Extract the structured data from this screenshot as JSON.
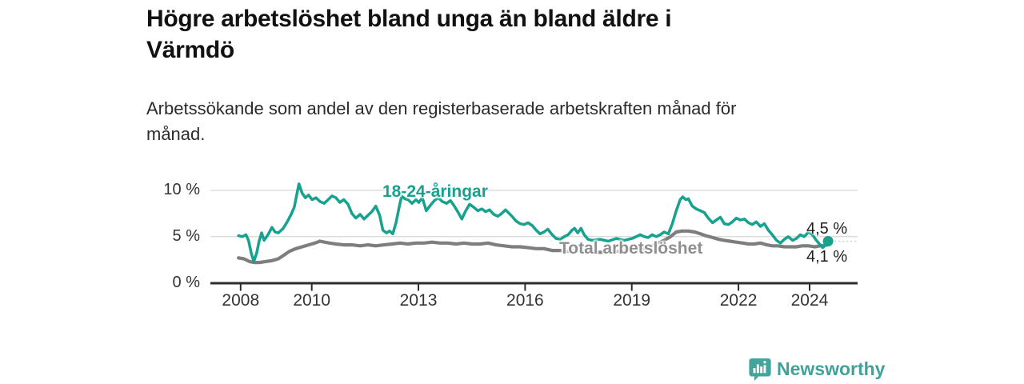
{
  "header": {
    "title_lines": [
      "Högre arbetslöshet bland unga än bland äldre i",
      "Värmdö"
    ],
    "subtitle_lines": [
      "Arbetssökande som andel av den registerbaserade arbetskraften månad för",
      "månad."
    ]
  },
  "footer": {
    "brand": "Newsworthy",
    "brand_icon": "bar-chart-speech-bubble",
    "brand_color": "#3FA29A"
  },
  "chart_data": {
    "type": "line",
    "title": "Högre arbetslöshet bland unga än bland äldre i Värmdö",
    "subtitle": "Arbetssökande som andel av den registerbaserade arbetskraften månad för månad.",
    "unit": "%",
    "grid": true,
    "legend_position": "inline-labels",
    "xlim": [
      2007.15,
      2025.35
    ],
    "ylim": [
      0,
      10
    ],
    "x_tick_years": [
      2008,
      2010,
      2013,
      2016,
      2019,
      2022,
      2024
    ],
    "x_tick_labels": [
      "2008",
      "2010",
      "2013",
      "2016",
      "2019",
      "2022",
      "2024"
    ],
    "y_tick_values": [
      0,
      5,
      10
    ],
    "y_tick_labels": [
      "0 %",
      "5 %",
      "10 %"
    ],
    "axis_color": "#2d2d2d",
    "grid_color": "#d7d7d7",
    "series": [
      {
        "name": "18-24-åringar",
        "color": "#17A28F",
        "end_label": "4,5 %",
        "end_value": 4.5,
        "end_dot": true,
        "points": [
          [
            2007.94,
            5.1
          ],
          [
            2008.05,
            5.0
          ],
          [
            2008.15,
            5.2
          ],
          [
            2008.22,
            4.6
          ],
          [
            2008.3,
            3.2
          ],
          [
            2008.37,
            2.3
          ],
          [
            2008.45,
            3.2
          ],
          [
            2008.52,
            4.5
          ],
          [
            2008.59,
            5.4
          ],
          [
            2008.66,
            4.6
          ],
          [
            2008.77,
            5.2
          ],
          [
            2008.88,
            6.0
          ],
          [
            2008.97,
            5.5
          ],
          [
            2009.06,
            5.4
          ],
          [
            2009.2,
            5.9
          ],
          [
            2009.31,
            6.6
          ],
          [
            2009.42,
            7.4
          ],
          [
            2009.51,
            8.2
          ],
          [
            2009.57,
            9.4
          ],
          [
            2009.64,
            10.7
          ],
          [
            2009.73,
            9.7
          ],
          [
            2009.82,
            9.2
          ],
          [
            2009.91,
            9.5
          ],
          [
            2010.01,
            9.0
          ],
          [
            2010.12,
            9.2
          ],
          [
            2010.23,
            8.8
          ],
          [
            2010.35,
            8.6
          ],
          [
            2010.46,
            9.0
          ],
          [
            2010.57,
            9.4
          ],
          [
            2010.68,
            9.2
          ],
          [
            2010.79,
            8.7
          ],
          [
            2010.9,
            9.0
          ],
          [
            2011.02,
            8.5
          ],
          [
            2011.13,
            7.5
          ],
          [
            2011.24,
            7.0
          ],
          [
            2011.36,
            7.4
          ],
          [
            2011.47,
            6.9
          ],
          [
            2011.58,
            7.3
          ],
          [
            2011.69,
            7.7
          ],
          [
            2011.8,
            8.3
          ],
          [
            2011.91,
            7.3
          ],
          [
            2012.0,
            5.7
          ],
          [
            2012.1,
            5.4
          ],
          [
            2012.19,
            5.6
          ],
          [
            2012.28,
            5.3
          ],
          [
            2012.37,
            6.5
          ],
          [
            2012.46,
            8.2
          ],
          [
            2012.53,
            9.4
          ],
          [
            2012.62,
            9.1
          ],
          [
            2012.71,
            9.0
          ],
          [
            2012.82,
            8.6
          ],
          [
            2012.93,
            9.0
          ],
          [
            2013.01,
            8.7
          ],
          [
            2013.11,
            9.2
          ],
          [
            2013.22,
            7.8
          ],
          [
            2013.34,
            8.4
          ],
          [
            2013.45,
            8.9
          ],
          [
            2013.56,
            9.2
          ],
          [
            2013.67,
            8.8
          ],
          [
            2013.79,
            8.6
          ],
          [
            2013.9,
            8.9
          ],
          [
            2014.01,
            8.3
          ],
          [
            2014.12,
            7.6
          ],
          [
            2014.22,
            6.9
          ],
          [
            2014.33,
            7.8
          ],
          [
            2014.44,
            8.5
          ],
          [
            2014.55,
            8.2
          ],
          [
            2014.67,
            7.8
          ],
          [
            2014.78,
            8.0
          ],
          [
            2014.89,
            7.7
          ],
          [
            2015.0,
            7.9
          ],
          [
            2015.12,
            7.4
          ],
          [
            2015.23,
            7.2
          ],
          [
            2015.34,
            7.5
          ],
          [
            2015.45,
            7.9
          ],
          [
            2015.63,
            7.2
          ],
          [
            2015.74,
            6.7
          ],
          [
            2015.86,
            6.4
          ],
          [
            2015.97,
            6.3
          ],
          [
            2016.08,
            6.5
          ],
          [
            2016.2,
            6.2
          ],
          [
            2016.31,
            5.7
          ],
          [
            2016.42,
            5.3
          ],
          [
            2016.53,
            5.5
          ],
          [
            2016.64,
            5.8
          ],
          [
            2016.76,
            5.2
          ],
          [
            2016.87,
            4.8
          ],
          [
            2016.99,
            4.7
          ],
          [
            2017.1,
            5.0
          ],
          [
            2017.21,
            5.2
          ],
          [
            2017.32,
            5.7
          ],
          [
            2017.39,
            5.9
          ],
          [
            2017.48,
            5.4
          ],
          [
            2017.57,
            5.9
          ],
          [
            2017.66,
            5.2
          ],
          [
            2017.77,
            4.7
          ],
          [
            2017.89,
            4.6
          ],
          [
            2018.11,
            4.7
          ],
          [
            2018.34,
            4.5
          ],
          [
            2018.56,
            4.8
          ],
          [
            2018.79,
            4.6
          ],
          [
            2019.01,
            4.8
          ],
          [
            2019.24,
            5.2
          ],
          [
            2019.35,
            5.0
          ],
          [
            2019.46,
            4.9
          ],
          [
            2019.57,
            5.2
          ],
          [
            2019.69,
            5.0
          ],
          [
            2019.8,
            5.2
          ],
          [
            2019.91,
            5.5
          ],
          [
            2020.03,
            5.3
          ],
          [
            2020.14,
            6.4
          ],
          [
            2020.25,
            7.8
          ],
          [
            2020.36,
            9.0
          ],
          [
            2020.43,
            9.3
          ],
          [
            2020.52,
            9.0
          ],
          [
            2020.59,
            9.1
          ],
          [
            2020.7,
            8.3
          ],
          [
            2020.81,
            8.0
          ],
          [
            2020.93,
            7.8
          ],
          [
            2021.04,
            7.6
          ],
          [
            2021.15,
            7.0
          ],
          [
            2021.27,
            6.5
          ],
          [
            2021.38,
            6.8
          ],
          [
            2021.49,
            7.1
          ],
          [
            2021.6,
            6.4
          ],
          [
            2021.72,
            6.3
          ],
          [
            2021.83,
            6.6
          ],
          [
            2021.94,
            7.0
          ],
          [
            2022.05,
            6.8
          ],
          [
            2022.17,
            6.9
          ],
          [
            2022.28,
            6.5
          ],
          [
            2022.39,
            6.3
          ],
          [
            2022.5,
            6.6
          ],
          [
            2022.62,
            6.1
          ],
          [
            2022.73,
            6.4
          ],
          [
            2022.84,
            5.7
          ],
          [
            2022.95,
            5.2
          ],
          [
            2023.07,
            4.6
          ],
          [
            2023.18,
            4.3
          ],
          [
            2023.29,
            4.7
          ],
          [
            2023.4,
            5.0
          ],
          [
            2023.52,
            4.6
          ],
          [
            2023.63,
            4.8
          ],
          [
            2023.74,
            5.2
          ],
          [
            2023.85,
            5.0
          ],
          [
            2023.97,
            5.5
          ],
          [
            2024.08,
            5.2
          ],
          [
            2024.19,
            4.6
          ],
          [
            2024.3,
            4.1
          ],
          [
            2024.37,
            3.8
          ],
          [
            2024.45,
            4.1
          ],
          [
            2024.52,
            4.5
          ]
        ]
      },
      {
        "name": "Total arbetslöshet",
        "color": "#7E7E7E",
        "end_label": "4,1 %",
        "end_value": 4.1,
        "end_dot": false,
        "points": [
          [
            2007.94,
            2.7
          ],
          [
            2008.09,
            2.6
          ],
          [
            2008.25,
            2.3
          ],
          [
            2008.38,
            2.2
          ],
          [
            2008.54,
            2.2
          ],
          [
            2008.7,
            2.3
          ],
          [
            2008.88,
            2.4
          ],
          [
            2009.06,
            2.6
          ],
          [
            2009.22,
            3.0
          ],
          [
            2009.37,
            3.4
          ],
          [
            2009.55,
            3.7
          ],
          [
            2009.73,
            3.9
          ],
          [
            2009.91,
            4.1
          ],
          [
            2010.09,
            4.3
          ],
          [
            2010.23,
            4.5
          ],
          [
            2010.36,
            4.4
          ],
          [
            2010.5,
            4.3
          ],
          [
            2010.68,
            4.2
          ],
          [
            2010.9,
            4.1
          ],
          [
            2011.13,
            4.1
          ],
          [
            2011.36,
            4.0
          ],
          [
            2011.58,
            4.1
          ],
          [
            2011.8,
            4.0
          ],
          [
            2012.03,
            4.1
          ],
          [
            2012.26,
            4.2
          ],
          [
            2012.48,
            4.3
          ],
          [
            2012.7,
            4.2
          ],
          [
            2012.93,
            4.3
          ],
          [
            2013.16,
            4.3
          ],
          [
            2013.38,
            4.4
          ],
          [
            2013.61,
            4.3
          ],
          [
            2013.83,
            4.3
          ],
          [
            2014.06,
            4.2
          ],
          [
            2014.28,
            4.3
          ],
          [
            2014.51,
            4.2
          ],
          [
            2014.73,
            4.2
          ],
          [
            2014.96,
            4.3
          ],
          [
            2015.18,
            4.1
          ],
          [
            2015.41,
            4.0
          ],
          [
            2015.63,
            3.9
          ],
          [
            2015.86,
            3.9
          ],
          [
            2016.08,
            3.8
          ],
          [
            2016.31,
            3.7
          ],
          [
            2016.53,
            3.7
          ],
          [
            2016.76,
            3.5
          ],
          [
            2016.99,
            3.5
          ],
          [
            2017.21,
            3.4
          ],
          [
            2017.43,
            3.5
          ],
          [
            2017.66,
            3.4
          ],
          [
            2017.89,
            3.4
          ],
          [
            2018.11,
            3.3
          ],
          [
            2018.34,
            3.4
          ],
          [
            2018.56,
            3.4
          ],
          [
            2018.79,
            3.5
          ],
          [
            2019.01,
            3.5
          ],
          [
            2019.24,
            3.6
          ],
          [
            2019.46,
            3.8
          ],
          [
            2019.69,
            4.2
          ],
          [
            2019.91,
            4.6
          ],
          [
            2020.09,
            5.0
          ],
          [
            2020.25,
            5.5
          ],
          [
            2020.41,
            5.6
          ],
          [
            2020.59,
            5.6
          ],
          [
            2020.77,
            5.5
          ],
          [
            2020.93,
            5.3
          ],
          [
            2021.08,
            5.1
          ],
          [
            2021.27,
            4.9
          ],
          [
            2021.45,
            4.7
          ],
          [
            2021.6,
            4.6
          ],
          [
            2021.76,
            4.5
          ],
          [
            2021.94,
            4.4
          ],
          [
            2022.12,
            4.3
          ],
          [
            2022.28,
            4.2
          ],
          [
            2022.44,
            4.2
          ],
          [
            2022.62,
            4.3
          ],
          [
            2022.8,
            4.1
          ],
          [
            2022.95,
            4.0
          ],
          [
            2023.11,
            4.0
          ],
          [
            2023.29,
            3.9
          ],
          [
            2023.47,
            3.9
          ],
          [
            2023.63,
            3.9
          ],
          [
            2023.79,
            4.0
          ],
          [
            2023.97,
            4.0
          ],
          [
            2024.15,
            3.9
          ],
          [
            2024.3,
            4.0
          ],
          [
            2024.52,
            4.1
          ]
        ]
      }
    ]
  }
}
